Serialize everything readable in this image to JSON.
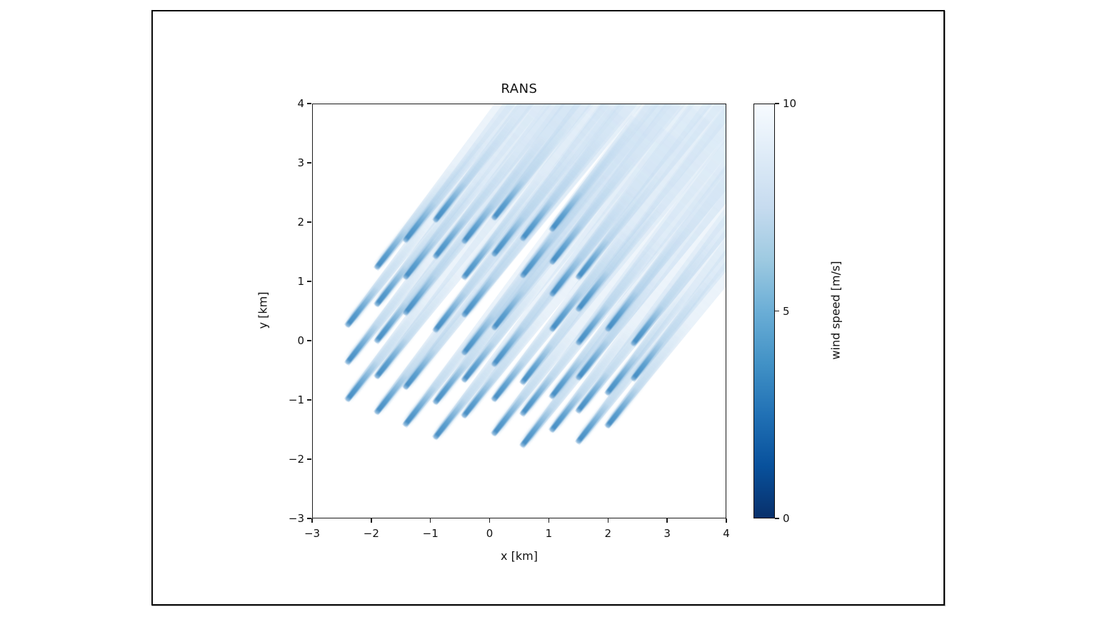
{
  "figure": {
    "title": "RANS",
    "xlabel": "x [km]",
    "ylabel": "y [km]"
  },
  "colorbar": {
    "label": "wind speed [m/s]",
    "min": 0,
    "max": 10,
    "ticks": [
      10,
      5,
      0
    ],
    "colormap": "Blues",
    "gradient_stops_top_to_bottom": [
      "#f7fbff",
      "#deebf7",
      "#c6dbef",
      "#9ecae1",
      "#6baed6",
      "#4292c6",
      "#2171b5",
      "#08519c",
      "#08306b"
    ]
  },
  "chart_data": {
    "type": "heatmap",
    "title": "RANS",
    "xlabel": "x [km]",
    "ylabel": "y [km]",
    "xlim": [
      -3,
      4
    ],
    "ylim": [
      -3,
      4
    ],
    "x_ticks": [
      -3,
      -2,
      -1,
      0,
      1,
      2,
      3,
      4
    ],
    "y_ticks": [
      4,
      3,
      2,
      1,
      0,
      -1,
      -2,
      -3
    ],
    "grid": false,
    "colorbar": {
      "label": "wind speed [m/s]",
      "min": 0,
      "max": 10,
      "ticks": [
        0,
        5,
        10
      ],
      "colormap": "Blues"
    },
    "freestream_wind_speed_ms": 10,
    "min_wake_wind_speed_ms": 4,
    "wake_direction_deg_ccw_from_x_axis": 52,
    "wake_core_color": "#4a94c8",
    "wake_envelope_color": "#d5e5f3",
    "turbines_xy_km": [
      [
        -2.43,
        0.25
      ],
      [
        -2.43,
        -0.38
      ],
      [
        -2.43,
        -1.0
      ],
      [
        -1.94,
        1.22
      ],
      [
        -1.94,
        0.6
      ],
      [
        -1.94,
        -0.02
      ],
      [
        -1.94,
        -0.62
      ],
      [
        -1.94,
        -1.22
      ],
      [
        -1.45,
        1.68
      ],
      [
        -1.45,
        1.06
      ],
      [
        -1.45,
        0.45
      ],
      [
        -1.45,
        -0.8
      ],
      [
        -1.45,
        -1.43
      ],
      [
        -0.95,
        2.02
      ],
      [
        -0.95,
        1.4
      ],
      [
        -0.95,
        0.16
      ],
      [
        -0.95,
        -1.05
      ],
      [
        -0.95,
        -1.64
      ],
      [
        -0.46,
        1.66
      ],
      [
        -0.46,
        1.05
      ],
      [
        -0.46,
        0.42
      ],
      [
        -0.46,
        -0.22
      ],
      [
        -0.46,
        -0.68
      ],
      [
        -0.46,
        -1.28
      ],
      [
        0.04,
        2.06
      ],
      [
        0.04,
        1.44
      ],
      [
        0.04,
        0.2
      ],
      [
        0.04,
        -0.42
      ],
      [
        0.04,
        -1.0
      ],
      [
        0.04,
        -1.58
      ],
      [
        0.53,
        1.7
      ],
      [
        0.53,
        1.08
      ],
      [
        0.53,
        -0.72
      ],
      [
        0.53,
        -1.25
      ],
      [
        0.53,
        -1.78
      ],
      [
        1.02,
        1.86
      ],
      [
        1.02,
        1.31
      ],
      [
        1.02,
        0.77
      ],
      [
        1.02,
        0.18
      ],
      [
        1.02,
        -0.96
      ],
      [
        1.02,
        -1.52
      ],
      [
        1.47,
        1.05
      ],
      [
        1.47,
        0.51
      ],
      [
        1.47,
        -0.06
      ],
      [
        1.47,
        -0.64
      ],
      [
        1.47,
        -1.2
      ],
      [
        1.47,
        -1.72
      ],
      [
        1.96,
        0.18
      ],
      [
        1.96,
        -0.9
      ],
      [
        1.96,
        -1.45
      ],
      [
        2.4,
        -0.07
      ],
      [
        2.4,
        -0.66
      ]
    ]
  }
}
